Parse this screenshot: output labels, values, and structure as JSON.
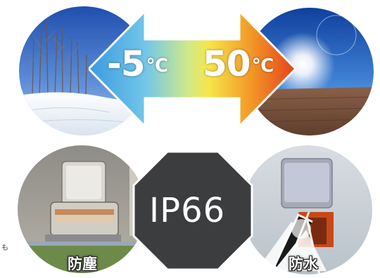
{
  "temperature": {
    "low_value": "-5",
    "low_unit": "℃",
    "high_value": "50",
    "high_unit": "℃"
  },
  "rating": {
    "code": "IP66"
  },
  "captions": {
    "dust": "防塵",
    "water": "防水"
  },
  "edge_fragment": "も",
  "icons": {
    "cold": "snowy-birch-forest-icon",
    "hot": "sun-over-desert-icon",
    "dust": "dust-test-chamber-icon",
    "water": "water-spray-test-icon",
    "arrow": "temperature-range-arrow-icon",
    "badge": "octagon-badge-icon"
  },
  "colors": {
    "cold": "#3a9ae0",
    "hot": "#ea4a18",
    "mid": "#f7e64a",
    "badge": "#3c3d3f"
  }
}
